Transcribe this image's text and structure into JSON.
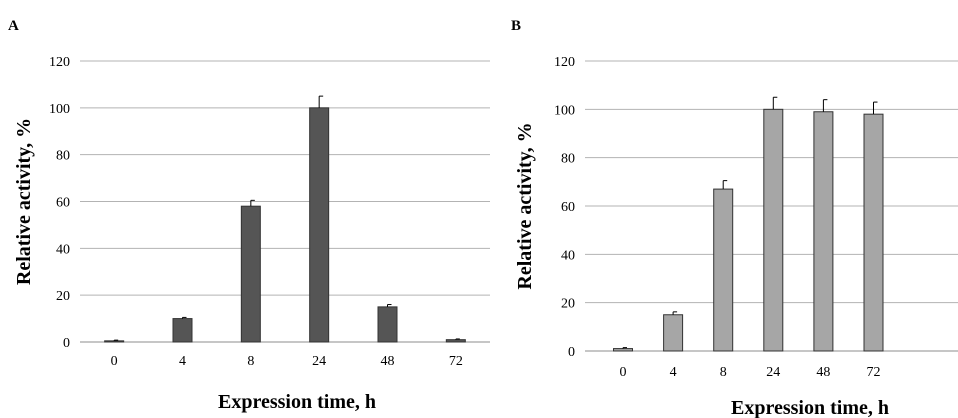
{
  "chart_data": [
    {
      "type": "bar",
      "panel_label": "A",
      "xlabel": "Expression time, h",
      "ylabel": "Relative activity, %",
      "categories": [
        "0",
        "4",
        "8",
        "24",
        "48",
        "72"
      ],
      "values": [
        0.5,
        10,
        58,
        100,
        15,
        1
      ],
      "errors": [
        0.3,
        0.5,
        2.5,
        5,
        1,
        0.3
      ],
      "ylim": [
        0,
        120
      ],
      "yticks": [
        "0",
        "20",
        "40",
        "60",
        "80",
        "100",
        "120"
      ],
      "grid": true,
      "color": "#555555"
    },
    {
      "type": "bar",
      "panel_label": "B",
      "xlabel": "Expression time, h",
      "ylabel": "Relative activity, %",
      "categories": [
        "0",
        "4",
        "8",
        "24",
        "48",
        "72"
      ],
      "values": [
        1,
        15,
        67,
        100,
        99,
        98
      ],
      "errors": [
        0.4,
        1.2,
        3.5,
        5,
        5,
        5
      ],
      "ylim": [
        0,
        120
      ],
      "yticks": [
        "0",
        "20",
        "40",
        "60",
        "80",
        "100",
        "120"
      ],
      "grid": true,
      "color": "#a6a6a6"
    }
  ]
}
